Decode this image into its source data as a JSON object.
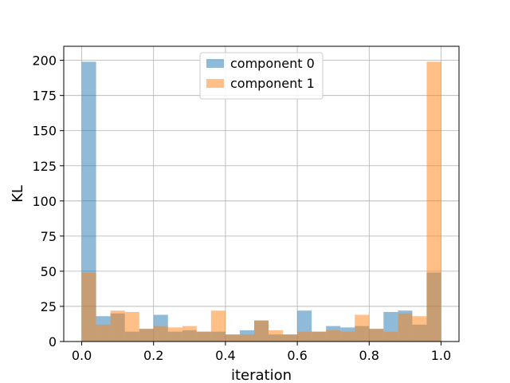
{
  "chart_data": {
    "type": "bar",
    "title": "",
    "xlabel": "iteration",
    "ylabel": "KL",
    "xlim": [
      -0.05,
      1.05
    ],
    "ylim": [
      0,
      210
    ],
    "grid": true,
    "legend_position": "top-center",
    "x_ticks": [
      {
        "value": 0.0,
        "label": "0.0"
      },
      {
        "value": 0.2,
        "label": "0.2"
      },
      {
        "value": 0.4,
        "label": "0.4"
      },
      {
        "value": 0.6,
        "label": "0.6"
      },
      {
        "value": 0.8,
        "label": "0.8"
      },
      {
        "value": 1.0,
        "label": "1.0"
      }
    ],
    "y_ticks": [
      {
        "value": 0,
        "label": "0"
      },
      {
        "value": 25,
        "label": "25"
      },
      {
        "value": 50,
        "label": "50"
      },
      {
        "value": 75,
        "label": "75"
      },
      {
        "value": 100,
        "label": "100"
      },
      {
        "value": 125,
        "label": "125"
      },
      {
        "value": 150,
        "label": "150"
      },
      {
        "value": 175,
        "label": "175"
      },
      {
        "value": 200,
        "label": "200"
      }
    ],
    "bin_edges": [
      0.0,
      0.04,
      0.08,
      0.12,
      0.16,
      0.2,
      0.24,
      0.28,
      0.32,
      0.36,
      0.4,
      0.44,
      0.48,
      0.52,
      0.56,
      0.6,
      0.64,
      0.68,
      0.72,
      0.76,
      0.8,
      0.84,
      0.88,
      0.92,
      0.96,
      1.0
    ],
    "series": [
      {
        "name": "component 0",
        "color": "#1f77b4",
        "alpha": 0.5,
        "values": [
          199,
          18,
          20,
          7,
          9,
          19,
          7,
          8,
          7,
          7,
          5,
          8,
          15,
          5,
          5,
          22,
          7,
          11,
          10,
          11,
          9,
          21,
          22,
          12,
          49
        ]
      },
      {
        "name": "component 1",
        "color": "#ff7f0e",
        "alpha": 0.5,
        "values": [
          49,
          12,
          22,
          21,
          9,
          11,
          10,
          11,
          7,
          22,
          5,
          5,
          15,
          8,
          5,
          7,
          7,
          8,
          7,
          19,
          9,
          7,
          20,
          18,
          199
        ]
      }
    ]
  }
}
